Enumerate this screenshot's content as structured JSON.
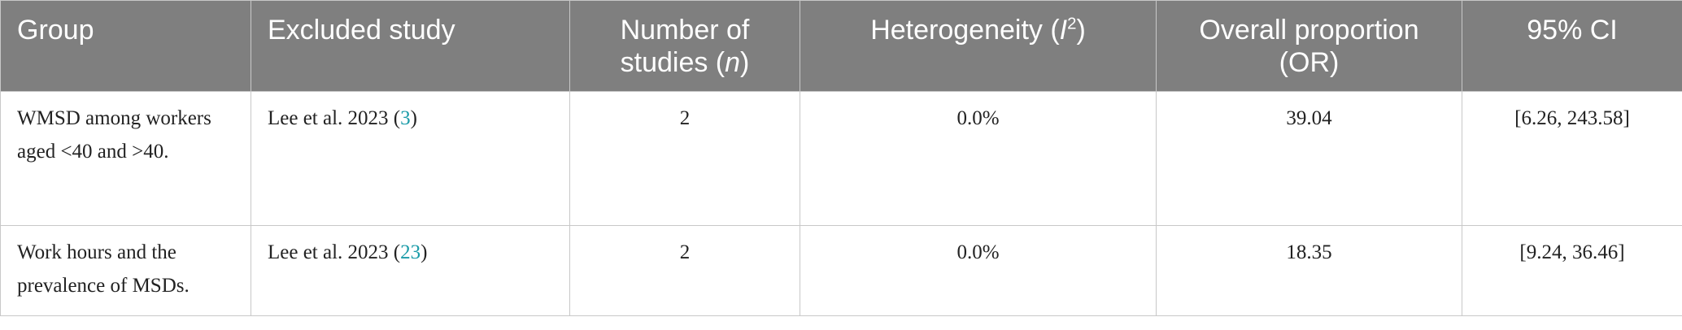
{
  "table": {
    "header": [
      [
        {
          "text": "Group"
        }
      ],
      [
        {
          "text": "Excluded study"
        }
      ],
      [
        {
          "text": "Number of studies ("
        },
        {
          "text": "n",
          "style": "italic"
        },
        {
          "text": ")"
        }
      ],
      [
        {
          "text": "Heterogeneity ("
        },
        {
          "text": "I",
          "style": "italic"
        },
        {
          "text": "2",
          "style": "sup"
        },
        {
          "text": ")"
        }
      ],
      [
        {
          "text": "Overall proportion (OR)"
        }
      ],
      [
        {
          "text": "95% CI"
        }
      ]
    ],
    "rows": [
      [
        [
          {
            "text": "WMSD among workers aged <40 and >40."
          }
        ],
        [
          {
            "text": "Lee et al. 2023 ("
          },
          {
            "text": "3",
            "style": "link"
          },
          {
            "text": ")"
          }
        ],
        [
          {
            "text": "2"
          }
        ],
        [
          {
            "text": "0.0%"
          }
        ],
        [
          {
            "text": "39.04"
          }
        ],
        [
          {
            "text": "[6.26, 243.58]"
          }
        ]
      ],
      [
        [
          {
            "text": "Work hours and the prevalence of MSDs."
          }
        ],
        [
          {
            "text": "Lee et al. 2023 ("
          },
          {
            "text": "23",
            "style": "link"
          },
          {
            "text": ")"
          }
        ],
        [
          {
            "text": "2"
          }
        ],
        [
          {
            "text": "0.0%"
          }
        ],
        [
          {
            "text": "18.35"
          }
        ],
        [
          {
            "text": "[9.24, 36.46]"
          }
        ]
      ]
    ]
  }
}
